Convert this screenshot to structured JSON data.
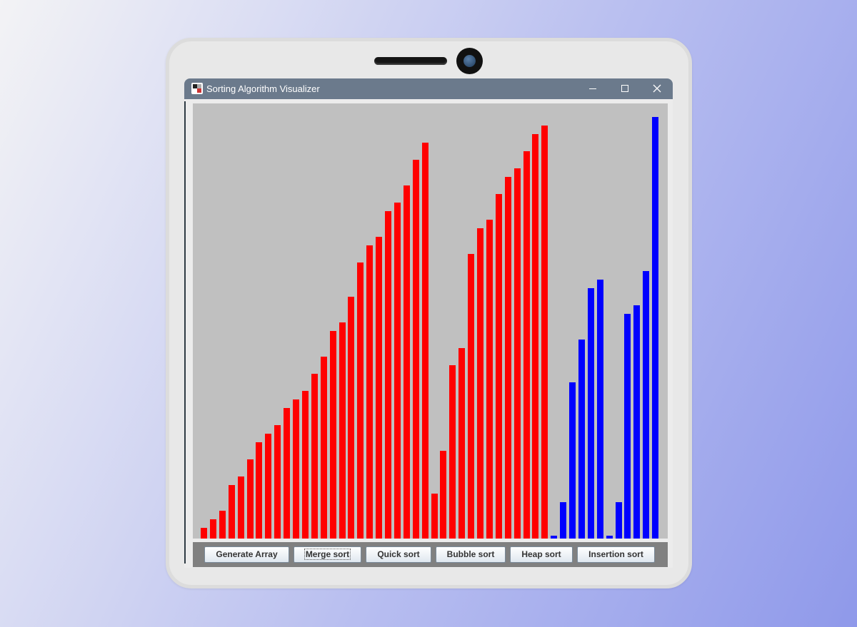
{
  "window": {
    "title": "Sorting Algorithm Visualizer",
    "controls": [
      "minimize-icon",
      "maximize-icon",
      "close-icon"
    ]
  },
  "colors": {
    "unsorted": "#ff0000",
    "active": "#0000ff",
    "canvas": "#c0c0c0"
  },
  "chart_data": {
    "type": "bar",
    "ylim": [
      0,
      100
    ],
    "values": [
      2.5,
      4.5,
      6.5,
      12.5,
      14.5,
      18.5,
      22.5,
      24.5,
      26.5,
      30.5,
      32.5,
      34.5,
      38.5,
      42.5,
      48.5,
      50.5,
      56.5,
      64.5,
      68.5,
      70.5,
      76.5,
      78.5,
      82.5,
      88.5,
      92.5,
      10.5,
      20.5,
      40.5,
      44.5,
      66.5,
      72.5,
      74.5,
      80.5,
      84.5,
      86.5,
      90.5,
      94.5,
      96.5,
      0.5,
      8.5,
      36.5,
      46.5,
      58.5,
      60.5,
      0.5,
      8.5,
      52.5,
      54.5,
      62.5,
      98.5
    ],
    "series_colors": [
      "red",
      "red",
      "red",
      "red",
      "red",
      "red",
      "red",
      "red",
      "red",
      "red",
      "red",
      "red",
      "red",
      "red",
      "red",
      "red",
      "red",
      "red",
      "red",
      "red",
      "red",
      "red",
      "red",
      "red",
      "red",
      "red",
      "red",
      "red",
      "red",
      "red",
      "red",
      "red",
      "red",
      "red",
      "red",
      "red",
      "red",
      "red",
      "blue",
      "blue",
      "blue",
      "blue",
      "blue",
      "blue",
      "blue",
      "blue",
      "blue",
      "blue",
      "blue",
      "blue"
    ]
  },
  "buttons": [
    {
      "label": "Generate Array"
    },
    {
      "label": "Merge sort"
    },
    {
      "label": "Quick sort"
    },
    {
      "label": "Bubble sort"
    },
    {
      "label": "Heap sort"
    },
    {
      "label": "Insertion sort"
    }
  ]
}
